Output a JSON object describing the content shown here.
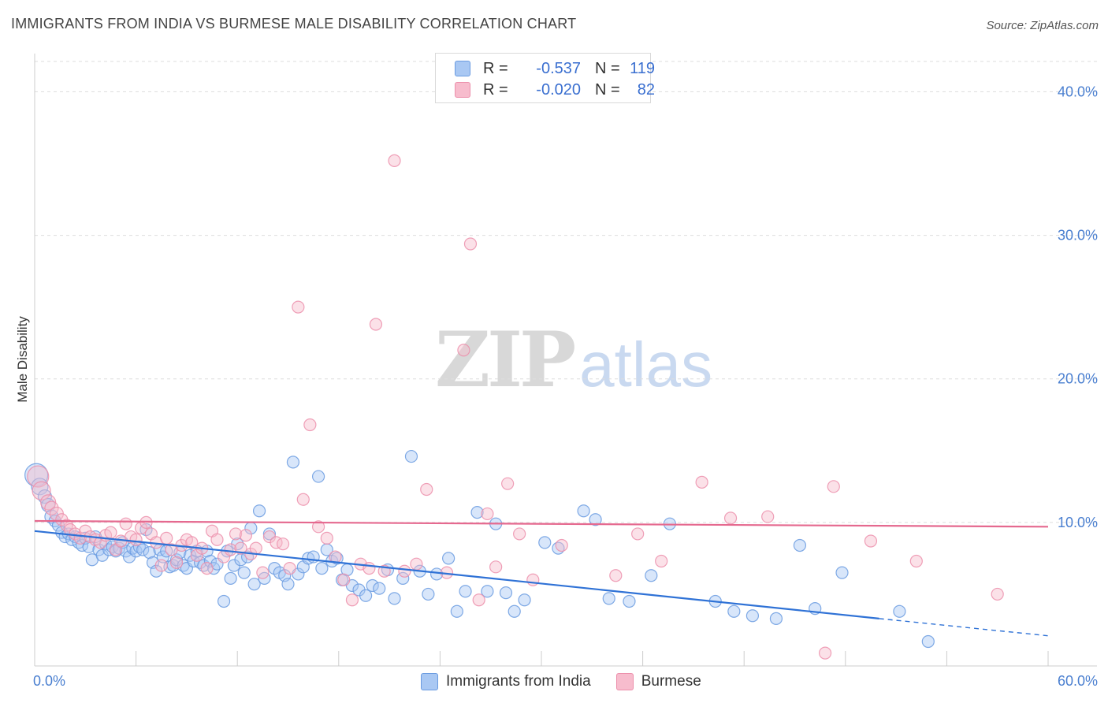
{
  "title": "IMMIGRANTS FROM INDIA VS BURMESE MALE DISABILITY CORRELATION CHART",
  "source": "Source: ZipAtlas.com",
  "watermark": {
    "part1": "ZIP",
    "part2": "atlas"
  },
  "legend": {
    "rows": [
      {
        "r_label": "R =",
        "r_value": "-0.537",
        "n_label": "N =",
        "n_value": "119"
      },
      {
        "r_label": "R =",
        "r_value": "-0.020",
        "n_label": "N =",
        "n_value": " 82"
      }
    ]
  },
  "colors": {
    "india_fill": "#a9c8f3",
    "india_stroke": "#6a9be0",
    "india_line": "#2f72d6",
    "burmese_fill": "#f7bccd",
    "burmese_stroke": "#ec8fab",
    "burmese_line": "#e5698f",
    "tick_text": "#4a7fd0",
    "grid": "#dddddd"
  },
  "chart_data": {
    "type": "scatter",
    "title": "IMMIGRANTS FROM INDIA VS BURMESE MALE DISABILITY CORRELATION CHART",
    "xlabel": "",
    "ylabel": "Male Disability",
    "xlim": [
      0,
      60
    ],
    "ylim": [
      0,
      42
    ],
    "x_tick_labels": [
      "0.0%",
      "60.0%"
    ],
    "y_ticks": [
      10,
      20,
      30,
      40
    ],
    "y_tick_labels": [
      "10.0%",
      "20.0%",
      "30.0%",
      "40.0%"
    ],
    "series": [
      {
        "name": "Immigrants from India",
        "r": -0.537,
        "n": 119,
        "trend": {
          "x0": 0,
          "y0": 9.4,
          "x1": 50,
          "y1": 3.3,
          "dash_to_x": 60,
          "dash_to_y": 2.1
        },
        "points": [
          [
            0.1,
            13.3,
            14
          ],
          [
            0.3,
            12.5,
            10
          ],
          [
            0.6,
            11.8,
            8
          ],
          [
            0.8,
            11.2,
            8
          ],
          [
            1.0,
            10.4,
            8
          ],
          [
            1.2,
            10.1,
            7
          ],
          [
            1.4,
            9.8,
            7
          ],
          [
            1.6,
            9.3,
            7
          ],
          [
            1.8,
            9.0,
            7
          ],
          [
            2.0,
            9.2,
            7
          ],
          [
            2.2,
            8.8,
            7
          ],
          [
            2.4,
            9.0,
            7
          ],
          [
            2.6,
            8.6,
            7
          ],
          [
            2.8,
            8.4,
            7
          ],
          [
            3.0,
            8.9,
            7
          ],
          [
            3.2,
            8.3,
            7
          ],
          [
            3.4,
            7.4,
            7
          ],
          [
            3.6,
            9.0,
            7
          ],
          [
            3.8,
            8.1,
            7
          ],
          [
            4.0,
            7.7,
            7
          ],
          [
            4.2,
            8.5,
            7
          ],
          [
            4.4,
            8.1,
            7
          ],
          [
            4.6,
            8.3,
            7
          ],
          [
            4.8,
            8.0,
            7
          ],
          [
            5.0,
            8.2,
            7
          ],
          [
            5.2,
            8.6,
            7
          ],
          [
            5.4,
            8.0,
            7
          ],
          [
            5.6,
            7.6,
            7
          ],
          [
            5.8,
            8.2,
            7
          ],
          [
            6.0,
            8.0,
            7
          ],
          [
            6.2,
            8.3,
            7
          ],
          [
            6.4,
            8.1,
            7
          ],
          [
            6.6,
            9.5,
            7
          ],
          [
            6.8,
            7.9,
            7
          ],
          [
            7.0,
            7.2,
            7
          ],
          [
            7.2,
            6.6,
            7
          ],
          [
            7.4,
            8.1,
            7
          ],
          [
            7.6,
            7.6,
            7
          ],
          [
            7.8,
            8.0,
            7
          ],
          [
            8.0,
            6.9,
            7
          ],
          [
            8.2,
            7.0,
            7
          ],
          [
            8.4,
            7.4,
            7
          ],
          [
            8.6,
            7.9,
            7
          ],
          [
            8.8,
            7.0,
            7
          ],
          [
            9.0,
            6.8,
            7
          ],
          [
            9.2,
            7.7,
            7
          ],
          [
            9.4,
            7.3,
            7
          ],
          [
            9.6,
            8.0,
            7
          ],
          [
            9.8,
            7.2,
            7
          ],
          [
            10.0,
            7.0,
            7
          ],
          [
            10.2,
            8.0,
            7
          ],
          [
            10.4,
            7.3,
            7
          ],
          [
            10.6,
            6.8,
            7
          ],
          [
            10.8,
            7.1,
            7
          ],
          [
            11.2,
            4.5,
            7
          ],
          [
            11.4,
            8.0,
            7
          ],
          [
            11.6,
            6.1,
            7
          ],
          [
            11.8,
            7.0,
            7
          ],
          [
            12.0,
            8.5,
            7
          ],
          [
            12.2,
            7.4,
            7
          ],
          [
            12.4,
            6.5,
            7
          ],
          [
            12.6,
            7.6,
            7
          ],
          [
            12.8,
            9.6,
            7
          ],
          [
            13.0,
            5.7,
            7
          ],
          [
            13.3,
            10.8,
            7
          ],
          [
            13.6,
            6.1,
            7
          ],
          [
            13.9,
            9.2,
            7
          ],
          [
            14.2,
            6.8,
            7
          ],
          [
            14.5,
            6.5,
            7
          ],
          [
            14.8,
            6.3,
            7
          ],
          [
            15.0,
            5.7,
            7
          ],
          [
            15.3,
            14.2,
            7
          ],
          [
            15.6,
            6.4,
            7
          ],
          [
            15.9,
            6.9,
            7
          ],
          [
            16.2,
            7.5,
            7
          ],
          [
            16.5,
            7.6,
            7
          ],
          [
            16.8,
            13.2,
            7
          ],
          [
            17.0,
            6.8,
            7
          ],
          [
            17.3,
            8.1,
            7
          ],
          [
            17.6,
            7.3,
            7
          ],
          [
            17.9,
            7.5,
            7
          ],
          [
            18.2,
            6.0,
            7
          ],
          [
            18.5,
            6.7,
            7
          ],
          [
            18.8,
            5.6,
            7
          ],
          [
            19.2,
            5.3,
            7
          ],
          [
            19.6,
            4.9,
            7
          ],
          [
            20.0,
            5.6,
            7
          ],
          [
            20.4,
            5.4,
            7
          ],
          [
            20.9,
            6.7,
            7
          ],
          [
            21.3,
            4.7,
            7
          ],
          [
            21.8,
            6.1,
            7
          ],
          [
            22.3,
            14.6,
            7
          ],
          [
            22.8,
            6.6,
            7
          ],
          [
            23.3,
            5.0,
            7
          ],
          [
            23.8,
            6.4,
            7
          ],
          [
            24.5,
            7.5,
            7
          ],
          [
            25.0,
            3.8,
            7
          ],
          [
            25.5,
            5.2,
            7
          ],
          [
            26.2,
            10.7,
            7
          ],
          [
            26.8,
            5.2,
            7
          ],
          [
            27.3,
            9.9,
            7
          ],
          [
            27.9,
            5.1,
            7
          ],
          [
            28.4,
            3.8,
            7
          ],
          [
            29.0,
            4.6,
            7
          ],
          [
            30.2,
            8.6,
            7
          ],
          [
            31.0,
            8.2,
            7
          ],
          [
            32.5,
            10.8,
            7
          ],
          [
            33.2,
            10.2,
            7
          ],
          [
            34.0,
            4.7,
            7
          ],
          [
            35.2,
            4.5,
            7
          ],
          [
            36.5,
            6.3,
            7
          ],
          [
            37.6,
            9.9,
            7
          ],
          [
            40.3,
            4.5,
            7
          ],
          [
            41.4,
            3.8,
            7
          ],
          [
            42.5,
            3.5,
            7
          ],
          [
            43.9,
            3.3,
            7
          ],
          [
            45.3,
            8.4,
            7
          ],
          [
            46.2,
            4.0,
            7
          ],
          [
            47.8,
            6.5,
            7
          ],
          [
            51.2,
            3.8,
            7
          ],
          [
            52.9,
            1.7,
            7
          ]
        ]
      },
      {
        "name": "Burmese",
        "r": -0.02,
        "n": 82,
        "trend": {
          "x0": 0,
          "y0": 10.1,
          "x1": 60,
          "y1": 9.7
        },
        "points": [
          [
            0.2,
            13.2,
            13
          ],
          [
            0.4,
            12.2,
            11
          ],
          [
            0.8,
            11.4,
            9
          ],
          [
            1.0,
            11.0,
            8
          ],
          [
            1.3,
            10.6,
            8
          ],
          [
            1.6,
            10.2,
            7
          ],
          [
            1.9,
            9.8,
            7
          ],
          [
            2.1,
            9.5,
            7
          ],
          [
            2.4,
            9.2,
            7
          ],
          [
            2.7,
            8.9,
            7
          ],
          [
            3.0,
            9.4,
            7
          ],
          [
            3.3,
            9.0,
            7
          ],
          [
            3.6,
            8.8,
            7
          ],
          [
            3.9,
            8.6,
            7
          ],
          [
            4.2,
            9.1,
            7
          ],
          [
            4.5,
            9.3,
            7
          ],
          [
            4.8,
            8.1,
            7
          ],
          [
            5.1,
            8.7,
            7
          ],
          [
            5.4,
            9.9,
            7
          ],
          [
            5.7,
            9.0,
            7
          ],
          [
            6.0,
            8.8,
            7
          ],
          [
            6.3,
            9.6,
            7
          ],
          [
            6.6,
            10.0,
            7
          ],
          [
            6.9,
            9.2,
            7
          ],
          [
            7.2,
            8.6,
            7
          ],
          [
            7.5,
            7.0,
            7
          ],
          [
            7.8,
            8.9,
            7
          ],
          [
            8.1,
            8.1,
            7
          ],
          [
            8.4,
            7.2,
            7
          ],
          [
            8.7,
            8.4,
            7
          ],
          [
            9.0,
            8.8,
            7
          ],
          [
            9.3,
            8.6,
            7
          ],
          [
            9.6,
            7.7,
            7
          ],
          [
            9.9,
            8.2,
            7
          ],
          [
            10.2,
            6.8,
            7
          ],
          [
            10.5,
            9.4,
            7
          ],
          [
            10.8,
            8.8,
            7
          ],
          [
            11.2,
            7.6,
            7
          ],
          [
            11.6,
            8.1,
            7
          ],
          [
            11.9,
            9.2,
            7
          ],
          [
            12.2,
            8.2,
            7
          ],
          [
            12.5,
            9.1,
            7
          ],
          [
            12.8,
            7.8,
            7
          ],
          [
            13.1,
            8.2,
            7
          ],
          [
            13.5,
            6.5,
            7
          ],
          [
            13.9,
            9.0,
            7
          ],
          [
            14.3,
            8.6,
            7
          ],
          [
            14.7,
            8.5,
            7
          ],
          [
            15.1,
            6.8,
            7
          ],
          [
            15.6,
            25.0,
            7
          ],
          [
            15.9,
            11.6,
            7
          ],
          [
            16.3,
            16.8,
            7
          ],
          [
            16.8,
            9.7,
            7
          ],
          [
            17.3,
            8.9,
            7
          ],
          [
            17.8,
            7.6,
            7
          ],
          [
            18.3,
            6.0,
            7
          ],
          [
            18.8,
            4.6,
            7
          ],
          [
            19.3,
            7.1,
            7
          ],
          [
            19.8,
            6.8,
            7
          ],
          [
            20.2,
            23.8,
            7
          ],
          [
            20.7,
            6.6,
            7
          ],
          [
            21.3,
            35.2,
            7
          ],
          [
            21.9,
            6.6,
            7
          ],
          [
            22.6,
            7.1,
            7
          ],
          [
            23.2,
            12.3,
            7
          ],
          [
            24.4,
            6.5,
            7
          ],
          [
            25.4,
            22.0,
            7
          ],
          [
            25.8,
            29.4,
            7
          ],
          [
            26.3,
            4.6,
            7
          ],
          [
            26.8,
            10.6,
            7
          ],
          [
            27.3,
            6.9,
            7
          ],
          [
            28.0,
            12.7,
            7
          ],
          [
            28.7,
            9.2,
            7
          ],
          [
            29.5,
            6.0,
            7
          ],
          [
            31.2,
            8.4,
            7
          ],
          [
            34.4,
            6.3,
            7
          ],
          [
            35.7,
            9.2,
            7
          ],
          [
            37.1,
            7.3,
            7
          ],
          [
            39.5,
            12.8,
            7
          ],
          [
            41.2,
            10.3,
            7
          ],
          [
            43.4,
            10.4,
            7
          ],
          [
            46.8,
            0.9,
            7
          ],
          [
            47.3,
            12.5,
            7
          ],
          [
            49.5,
            8.7,
            7
          ],
          [
            52.2,
            7.3,
            7
          ],
          [
            57.0,
            5.0,
            7
          ]
        ]
      }
    ]
  },
  "bottom_legend": {
    "items": [
      {
        "label": "Immigrants from India"
      },
      {
        "label": "Burmese"
      }
    ]
  }
}
